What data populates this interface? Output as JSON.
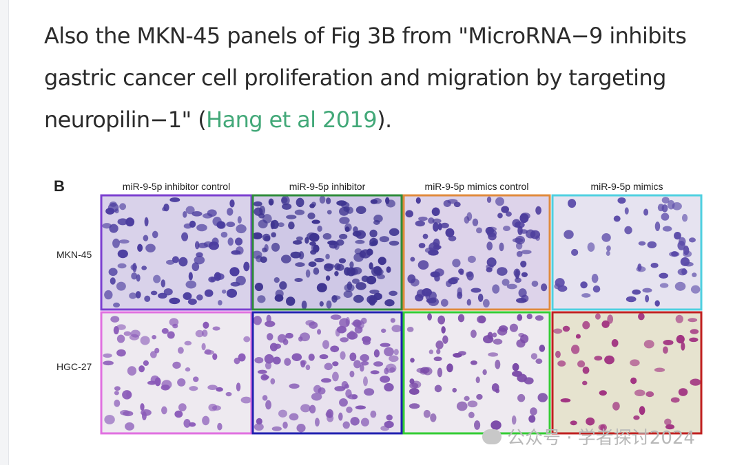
{
  "paragraph": {
    "text_before": "Also the MKN-45 panels of Fig 3B from \"MicroRNA−9 inhibits gastric cancer cell proliferation and migration by targeting neuropilin−1\" (",
    "link": "Hang et al 2019",
    "text_after": ")."
  },
  "figure": {
    "panel_label": "B",
    "columns": [
      "miR-9-5p inhibitor control",
      "miR-9-5p inhibitor",
      "miR-9-5p mimics control",
      "miR-9-5p mimics"
    ],
    "rows": [
      "MKN-45",
      "HGC-27"
    ]
  },
  "watermark": "公众号 · 学者探讨2024"
}
